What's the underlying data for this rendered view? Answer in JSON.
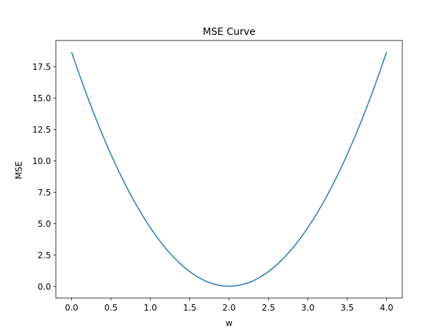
{
  "chart_data": {
    "type": "line",
    "title": "MSE Curve",
    "xlabel": "w",
    "ylabel": "MSE",
    "xlim": [
      -0.2,
      4.2
    ],
    "ylim": [
      -0.93,
      19.6
    ],
    "xticks": [
      0.0,
      0.5,
      1.0,
      1.5,
      2.0,
      2.5,
      3.0,
      3.5,
      4.0
    ],
    "xtick_labels": [
      "0.0",
      "0.5",
      "1.0",
      "1.5",
      "2.0",
      "2.5",
      "3.0",
      "3.5",
      "4.0"
    ],
    "yticks": [
      0.0,
      2.5,
      5.0,
      7.5,
      10.0,
      12.5,
      15.0,
      17.5
    ],
    "ytick_labels": [
      "0.0",
      "2.5",
      "5.0",
      "7.5",
      "10.0",
      "12.5",
      "15.0",
      "17.5"
    ],
    "grid": false,
    "line_color": "#1f77b4",
    "series": [
      {
        "x": [
          0.0,
          0.1,
          0.2,
          0.3,
          0.4,
          0.5,
          0.6,
          0.7,
          0.8,
          0.9,
          1.0,
          1.1,
          1.2,
          1.3,
          1.4,
          1.5,
          1.6,
          1.7,
          1.8,
          1.9,
          2.0,
          2.1,
          2.2,
          2.3,
          2.4,
          2.5,
          2.6,
          2.7,
          2.8,
          2.9,
          3.0,
          3.1,
          3.2,
          3.3,
          3.4,
          3.5,
          3.6,
          3.7,
          3.8,
          3.9,
          4.0
        ],
        "y": [
          18.67,
          16.85,
          15.12,
          13.49,
          11.95,
          10.5,
          9.15,
          7.89,
          6.72,
          5.65,
          4.67,
          3.78,
          2.99,
          2.29,
          1.68,
          1.17,
          0.75,
          0.42,
          0.19,
          0.05,
          0.0,
          0.05,
          0.19,
          0.42,
          0.75,
          1.17,
          1.68,
          2.29,
          2.99,
          3.78,
          4.67,
          5.65,
          6.72,
          7.89,
          9.15,
          10.5,
          11.95,
          13.49,
          15.12,
          16.85,
          18.67
        ]
      }
    ]
  }
}
